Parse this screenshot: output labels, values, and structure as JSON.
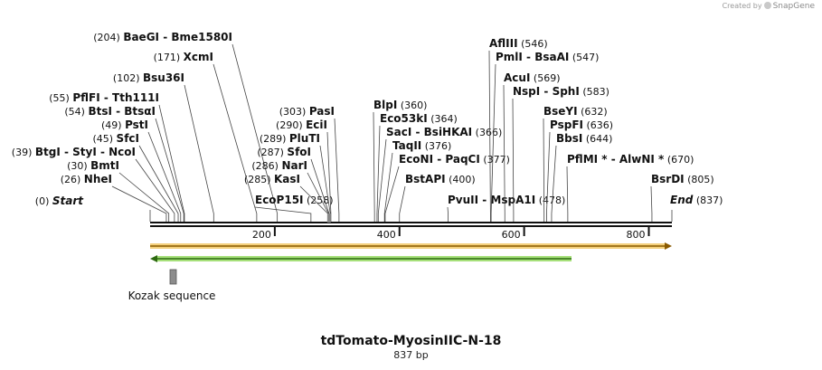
{
  "credit": {
    "prefix": "Created by",
    "brand": "SnapGene"
  },
  "plasmid": {
    "name": "tdTomato-MyosinIIC-N-18",
    "length_label": "837 bp",
    "length": 837
  },
  "ruler": {
    "ticks": [
      200,
      400,
      600,
      800
    ]
  },
  "features": [
    {
      "name": "Kozak sequence",
      "color": "#8c8c8c"
    }
  ],
  "sites": [
    {
      "pos_label": "(0)",
      "name": "Start",
      "italic": true,
      "pos": 0
    },
    {
      "pos_label": "(26)",
      "name": "NheI",
      "pos": 26
    },
    {
      "pos_label": "(30)",
      "name": "BmtI",
      "pos": 30
    },
    {
      "pos_label": "(39)",
      "name": "BtgI  - StyI  - NcoI",
      "pos": 39
    },
    {
      "pos_label": "(45)",
      "name": "SfcI",
      "pos": 45
    },
    {
      "pos_label": "(49)",
      "name": "PstI",
      "pos": 49
    },
    {
      "pos_label": "(54)",
      "name": "BtsI  - BtsαI",
      "pos": 54
    },
    {
      "pos_label": "(55)",
      "name": "PflFI  - Tth111I",
      "pos": 55
    },
    {
      "pos_label": "(102)",
      "name": "Bsu36I",
      "pos": 102
    },
    {
      "pos_label": "(171)",
      "name": "XcmI",
      "pos": 171
    },
    {
      "pos_label": "(204)",
      "name": "BaeGI  - Bme1580I",
      "pos": 204
    },
    {
      "pos_label": "(258)",
      "name": "EcoP15I",
      "pos": 258
    },
    {
      "pos_label": "(285)",
      "name": "KasI",
      "pos": 285
    },
    {
      "pos_label": "(286)",
      "name": "NarI",
      "pos": 286
    },
    {
      "pos_label": "(287)",
      "name": "SfoI",
      "pos": 287
    },
    {
      "pos_label": "(289)",
      "name": "PluTI",
      "pos": 289
    },
    {
      "pos_label": "(290)",
      "name": "EciI",
      "pos": 290
    },
    {
      "pos_label": "(303)",
      "name": "PasI",
      "pos": 303
    },
    {
      "pos_label": "(360)",
      "name": "BlpI",
      "pos": 360
    },
    {
      "pos_label": "(364)",
      "name": "Eco53kI",
      "pos": 364
    },
    {
      "pos_label": "(366)",
      "name": "SacI  - BsiHKAI",
      "pos": 366
    },
    {
      "pos_label": "(376)",
      "name": "TaqII",
      "pos": 376
    },
    {
      "pos_label": "(377)",
      "name": "EcoNI  - PaqCI",
      "pos": 377
    },
    {
      "pos_label": "(400)",
      "name": "BstAPI",
      "pos": 400
    },
    {
      "pos_label": "(478)",
      "name": "PvuII  - MspA1I",
      "pos": 478
    },
    {
      "pos_label": "(546)",
      "name": "AflIII",
      "pos": 546
    },
    {
      "pos_label": "(547)",
      "name": "PmlI  - BsaAI",
      "pos": 547
    },
    {
      "pos_label": "(569)",
      "name": "AcuI",
      "pos": 569
    },
    {
      "pos_label": "(583)",
      "name": "NspI  - SphI",
      "pos": 583
    },
    {
      "pos_label": "(632)",
      "name": "BseYI",
      "pos": 632
    },
    {
      "pos_label": "(636)",
      "name": "PspFI",
      "pos": 636
    },
    {
      "pos_label": "(644)",
      "name": "BbsI",
      "pos": 644
    },
    {
      "pos_label": "(670)",
      "name": "PflMI *  - AlwNI *",
      "pos": 670
    },
    {
      "pos_label": "(805)",
      "name": "BsrDI",
      "pos": 805
    },
    {
      "pos_label": "(837)",
      "name": "End",
      "italic": true,
      "pos": 837
    }
  ]
}
